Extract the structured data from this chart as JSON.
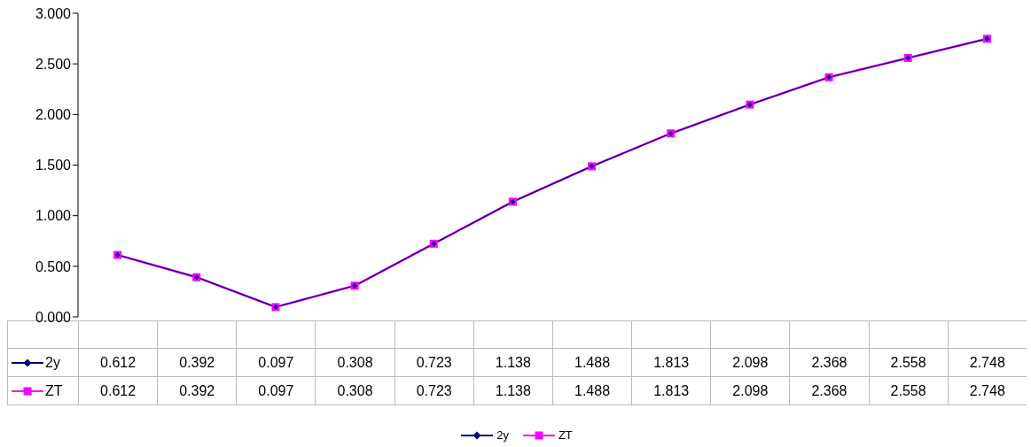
{
  "chart_data": {
    "type": "line",
    "categories": [
      null,
      null,
      null,
      null,
      null,
      null,
      null,
      null,
      null,
      null,
      null,
      null
    ],
    "series": [
      {
        "name": "2y",
        "color": "#000080",
        "marker": "diamond",
        "values": [
          0.612,
          0.392,
          0.097,
          0.308,
          0.723,
          1.138,
          1.488,
          1.813,
          2.098,
          2.368,
          2.558,
          2.748
        ]
      },
      {
        "name": "ZT",
        "color": "#ff00ff",
        "marker": "square",
        "values": [
          0.612,
          0.392,
          0.097,
          0.308,
          0.723,
          1.138,
          1.488,
          1.813,
          2.098,
          2.368,
          2.558,
          2.748
        ]
      }
    ],
    "ylim": [
      0,
      3
    ],
    "yticks": [
      {
        "value": 0,
        "label": "0.000"
      },
      {
        "value": 0.5,
        "label": "0.500"
      },
      {
        "value": 1,
        "label": "1.000"
      },
      {
        "value": 1.5,
        "label": "1.500"
      },
      {
        "value": 2,
        "label": "2.000"
      },
      {
        "value": 2.5,
        "label": "2.500"
      },
      {
        "value": 3,
        "label": "3.000"
      }
    ],
    "grid": false,
    "legend": "bottom",
    "data_labels": true
  }
}
